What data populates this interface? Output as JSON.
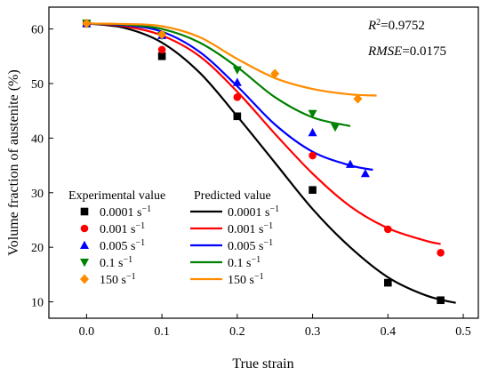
{
  "chart_data": {
    "type": "scatter",
    "xlabel": "True strain",
    "ylabel": "Volume fraction of austenite (%)",
    "xlim": [
      -0.05,
      0.52
    ],
    "ylim": [
      7,
      64
    ],
    "x_ticks": [
      "0.0",
      "0.1",
      "0.2",
      "0.3",
      "0.4",
      "0.5"
    ],
    "y_ticks": [
      "10",
      "20",
      "30",
      "40",
      "50",
      "60"
    ],
    "stats": {
      "r2_symbol": "R",
      "r2_power": "2",
      "r2_value": "=0.9752",
      "rmse_symbol": "RMSE",
      "rmse_value": "=0.0175"
    },
    "legend": {
      "experimental_header": "Experimental value",
      "predicted_header": "Predicted value",
      "unit_base": " s",
      "unit_power": "−1"
    },
    "grid": false,
    "series": [
      {
        "name": "0.0001",
        "color": "#000000",
        "marker": "square",
        "experimental": {
          "x": [
            0.0,
            0.1,
            0.2,
            0.3,
            0.4,
            0.47
          ],
          "y": [
            61,
            55,
            44,
            30.5,
            13.5,
            10.3
          ]
        },
        "predicted": {
          "x": [
            0.0,
            0.05,
            0.1,
            0.15,
            0.2,
            0.25,
            0.3,
            0.35,
            0.4,
            0.45,
            0.49
          ],
          "y": [
            61,
            60.2,
            57.5,
            52,
            44,
            35.5,
            27,
            20,
            14.5,
            11.2,
            9.8
          ]
        }
      },
      {
        "name": "0.001",
        "color": "#ff0000",
        "marker": "circle",
        "experimental": {
          "x": [
            0.0,
            0.1,
            0.2,
            0.3,
            0.4,
            0.47
          ],
          "y": [
            61,
            56.2,
            47.5,
            36.8,
            23.3,
            19
          ]
        },
        "predicted": {
          "x": [
            0.0,
            0.05,
            0.1,
            0.15,
            0.2,
            0.25,
            0.3,
            0.35,
            0.4,
            0.45,
            0.47
          ],
          "y": [
            61,
            60.5,
            58.8,
            55,
            48.5,
            40.8,
            33.5,
            27.5,
            23.5,
            21.2,
            20.6
          ]
        }
      },
      {
        "name": "0.005",
        "color": "#0000ff",
        "marker": "triangle-up",
        "experimental": {
          "x": [
            0.0,
            0.1,
            0.2,
            0.3,
            0.35,
            0.37
          ],
          "y": [
            61,
            58.8,
            50.2,
            41,
            35.2,
            33.5
          ]
        },
        "predicted": {
          "x": [
            0.0,
            0.05,
            0.1,
            0.15,
            0.2,
            0.25,
            0.3,
            0.35,
            0.38
          ],
          "y": [
            61,
            60.7,
            59.5,
            55.8,
            49.5,
            42.5,
            37.5,
            35,
            34.2
          ]
        }
      },
      {
        "name": "0.1",
        "color": "#008000",
        "marker": "triangle-down",
        "experimental": {
          "x": [
            0.0,
            0.1,
            0.2,
            0.3,
            0.33
          ],
          "y": [
            61,
            58.8,
            52.5,
            44.5,
            42
          ]
        },
        "predicted": {
          "x": [
            0.0,
            0.05,
            0.1,
            0.15,
            0.2,
            0.25,
            0.3,
            0.35
          ],
          "y": [
            61,
            60.8,
            60,
            57.5,
            53,
            47.5,
            43.8,
            42.2
          ]
        }
      },
      {
        "name": "150",
        "color": "#ff8c00",
        "marker": "diamond",
        "experimental": {
          "x": [
            0.0,
            0.1,
            0.25,
            0.36
          ],
          "y": [
            61,
            59,
            51.8,
            47.2
          ]
        },
        "predicted": {
          "x": [
            0.0,
            0.05,
            0.1,
            0.15,
            0.2,
            0.25,
            0.3,
            0.35,
            0.385
          ],
          "y": [
            61,
            60.9,
            60.5,
            58.5,
            54.5,
            51,
            49,
            48,
            47.8
          ]
        }
      }
    ]
  }
}
